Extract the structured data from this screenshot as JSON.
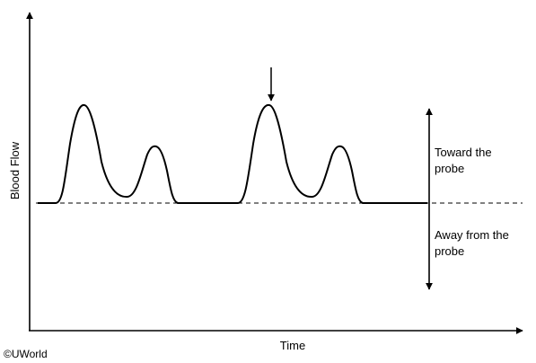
{
  "diagram": {
    "y_axis_label": "Blood Flow",
    "x_axis_label": "Time",
    "direction_toward_label_line1": "Toward the",
    "direction_toward_label_line2": "probe",
    "direction_away_label_line1": "Away from the",
    "direction_away_label_line2": "probe",
    "copyright": "©UWorld",
    "colors": {
      "stroke": "#000000",
      "background": "#ffffff"
    }
  }
}
